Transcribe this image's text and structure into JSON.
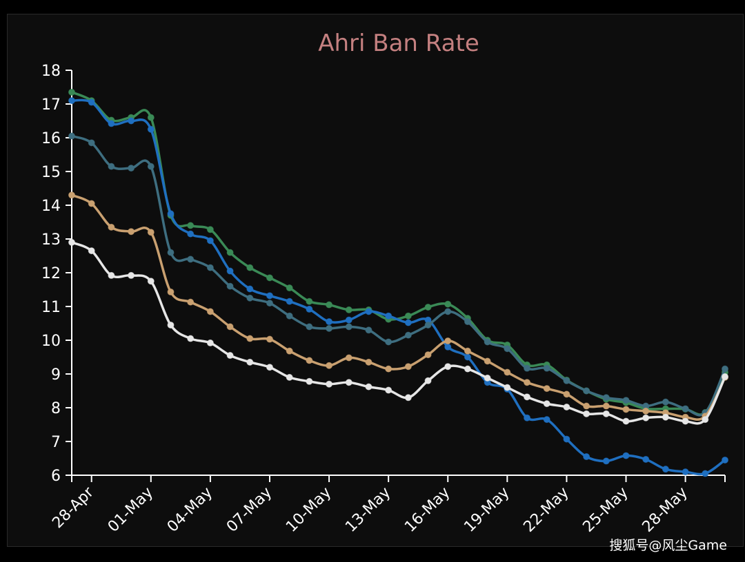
{
  "chart_data": {
    "type": "line",
    "title": "Ahri Ban Rate",
    "title_color": "#c48080",
    "xlabel": "",
    "ylabel": "",
    "ylim": [
      6,
      18
    ],
    "yticks": [
      6,
      7,
      8,
      9,
      10,
      11,
      12,
      13,
      14,
      15,
      16,
      17,
      18
    ],
    "grid": false,
    "x_start": "27-Apr",
    "x_end": "30-May",
    "xtick_labels": [
      "28-Apr",
      "01-May",
      "04-May",
      "07-May",
      "10-May",
      "13-May",
      "16-May",
      "19-May",
      "22-May",
      "25-May",
      "28-May"
    ],
    "series": [
      {
        "color": "#3a8a56",
        "values": [
          17.35,
          17.1,
          16.52,
          16.6,
          16.6,
          13.7,
          13.4,
          13.28,
          12.6,
          12.15,
          11.85,
          11.55,
          11.15,
          11.05,
          10.9,
          10.9,
          10.62,
          10.72,
          10.98,
          11.07,
          10.65,
          10.0,
          9.86,
          9.27,
          9.27,
          8.82,
          8.5,
          8.25,
          8.15,
          7.97,
          7.97,
          7.96,
          7.86,
          9.05
        ]
      },
      {
        "color": "#1f6fc0",
        "values": [
          17.1,
          17.05,
          16.42,
          16.5,
          16.25,
          13.75,
          13.15,
          12.95,
          12.05,
          11.52,
          11.32,
          11.15,
          10.92,
          10.55,
          10.6,
          10.85,
          10.72,
          10.52,
          10.6,
          9.8,
          9.5,
          8.75,
          8.55,
          7.7,
          7.65,
          7.07,
          6.55,
          6.42,
          6.58,
          6.47,
          6.18,
          6.1,
          6.05,
          6.45
        ]
      },
      {
        "color": "#3e6e80",
        "values": [
          16.05,
          15.85,
          15.15,
          15.1,
          15.15,
          12.6,
          12.4,
          12.15,
          11.6,
          11.25,
          11.1,
          10.72,
          10.4,
          10.35,
          10.4,
          10.3,
          9.95,
          10.15,
          10.45,
          10.85,
          10.55,
          9.95,
          9.75,
          9.17,
          9.17,
          8.8,
          8.5,
          8.3,
          8.22,
          8.05,
          8.17,
          7.97,
          7.85,
          9.15
        ]
      },
      {
        "color": "#c9a070",
        "values": [
          14.3,
          14.05,
          13.35,
          13.22,
          13.2,
          11.43,
          11.13,
          10.85,
          10.4,
          10.05,
          10.03,
          9.68,
          9.4,
          9.25,
          9.48,
          9.35,
          9.15,
          9.22,
          9.57,
          9.98,
          9.68,
          9.38,
          9.05,
          8.75,
          8.57,
          8.4,
          8.05,
          8.05,
          7.95,
          7.9,
          7.85,
          7.72,
          7.75,
          8.9
        ]
      },
      {
        "color": "#e6e6e6",
        "values": [
          12.9,
          12.65,
          11.92,
          11.92,
          11.75,
          10.45,
          10.05,
          9.92,
          9.55,
          9.35,
          9.2,
          8.9,
          8.78,
          8.7,
          8.75,
          8.62,
          8.52,
          8.3,
          8.8,
          9.22,
          9.15,
          8.88,
          8.6,
          8.32,
          8.12,
          8.02,
          7.82,
          7.82,
          7.6,
          7.7,
          7.72,
          7.6,
          7.65,
          8.92
        ]
      }
    ]
  },
  "watermark": "搜狐号@风尘Game"
}
